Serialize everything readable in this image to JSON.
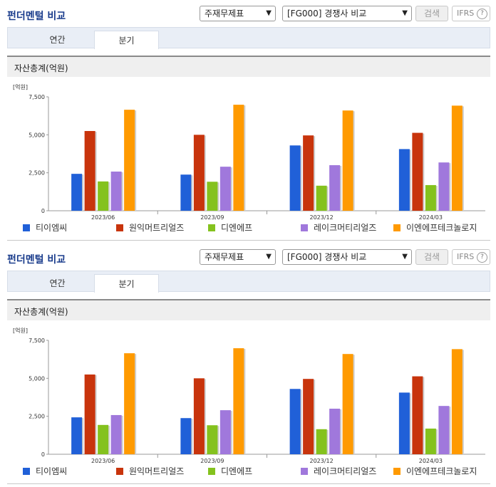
{
  "panels": [
    {
      "title": "펀더멘털 비교",
      "select1": "주재무제표",
      "select2": "[FG000] 경쟁사 비교",
      "search_label": "검색",
      "ifrs_label": "IFRS",
      "help_glyph": "?",
      "tabs": [
        "연간",
        "분기"
      ],
      "active_tab": "분기",
      "section_title": "자산총계(억원)"
    },
    {
      "title": "펀더멘털 비교",
      "select1": "주재무제표",
      "select2": "[FG000] 경쟁사 비교",
      "search_label": "검색",
      "ifrs_label": "IFRS",
      "help_glyph": "?",
      "tabs": [
        "연간",
        "분기"
      ],
      "active_tab": "분기",
      "section_title": "자산총계(억원)"
    }
  ],
  "chart_data": [
    {
      "type": "bar",
      "unit_label": "[억원]",
      "categories": [
        "2023/06",
        "2023/09",
        "2023/12",
        "2024/03"
      ],
      "ylim": [
        0,
        7500
      ],
      "yticks": [
        0,
        2500,
        5000,
        7500
      ],
      "ytick_labels": [
        "0",
        "2,500",
        "5,000",
        "7,500"
      ],
      "series": [
        {
          "name": "티이엠씨",
          "color": "#2060d8",
          "values": [
            2430,
            2380,
            4300,
            4060
          ]
        },
        {
          "name": "원익머트리얼즈",
          "color": "#c8340c",
          "values": [
            5250,
            5000,
            4960,
            5130
          ]
        },
        {
          "name": "디엔에프",
          "color": "#84c21e",
          "values": [
            1930,
            1910,
            1650,
            1690
          ]
        },
        {
          "name": "레이크머티리얼즈",
          "color": "#a078dc",
          "values": [
            2580,
            2900,
            3000,
            3180
          ]
        },
        {
          "name": "이엔에프테크놀로지",
          "color": "#ff9a00",
          "values": [
            6650,
            6980,
            6600,
            6920
          ]
        }
      ],
      "legend_position": "bottom"
    },
    {
      "type": "bar",
      "unit_label": "[억원]",
      "categories": [
        "2023/06",
        "2023/09",
        "2023/12",
        "2024/03"
      ],
      "ylim": [
        0,
        7500
      ],
      "yticks": [
        0,
        2500,
        5000,
        7500
      ],
      "ytick_labels": [
        "0",
        "2,500",
        "5,000",
        "7,500"
      ],
      "series": [
        {
          "name": "티이엠씨",
          "color": "#2060d8",
          "values": [
            2430,
            2380,
            4300,
            4060
          ]
        },
        {
          "name": "원익머트리얼즈",
          "color": "#c8340c",
          "values": [
            5250,
            5000,
            4960,
            5130
          ]
        },
        {
          "name": "디엔에프",
          "color": "#84c21e",
          "values": [
            1930,
            1910,
            1650,
            1690
          ]
        },
        {
          "name": "레이크머티리얼즈",
          "color": "#a078dc",
          "values": [
            2580,
            2900,
            3000,
            3180
          ]
        },
        {
          "name": "이엔에프테크놀로지",
          "color": "#ff9a00",
          "values": [
            6650,
            6980,
            6600,
            6920
          ]
        }
      ],
      "legend_position": "bottom"
    }
  ]
}
